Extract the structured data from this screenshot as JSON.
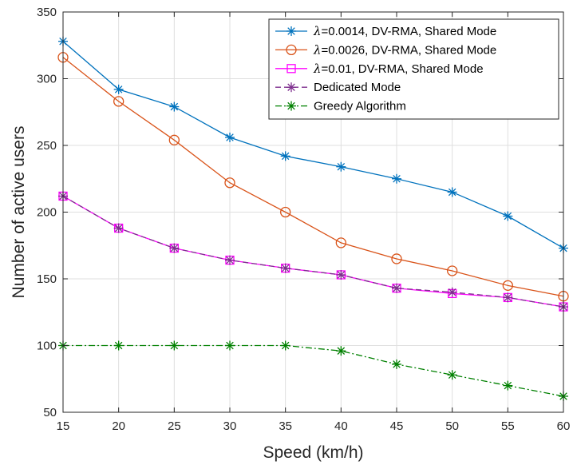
{
  "chart_data": {
    "type": "line",
    "xlabel": "Speed (km/h)",
    "ylabel": "Number of active users",
    "xlim": [
      15,
      60
    ],
    "ylim": [
      50,
      350
    ],
    "x_ticks": [
      15,
      20,
      25,
      30,
      35,
      40,
      45,
      50,
      55,
      60
    ],
    "y_ticks": [
      50,
      100,
      150,
      200,
      250,
      300,
      350
    ],
    "grid": true,
    "legend_position": "top-right",
    "x": [
      15,
      20,
      25,
      30,
      35,
      40,
      45,
      50,
      55,
      60
    ],
    "series": [
      {
        "name": "λ=0.0014, DV-RMA, Shared Mode",
        "legend_symbol": "λ",
        "legend_rest": "=0.0014, DV-RMA, Shared Mode",
        "color": "#0072BD",
        "marker": "asterisk",
        "line_style": "solid",
        "values": [
          328,
          292,
          279,
          256,
          242,
          234,
          225,
          215,
          197,
          173
        ]
      },
      {
        "name": "λ=0.0026, DV-RMA, Shared Mode",
        "legend_symbol": "λ",
        "legend_rest": "=0.0026, DV-RMA, Shared Mode",
        "color": "#D95319",
        "marker": "circle",
        "line_style": "solid",
        "values": [
          316,
          283,
          254,
          222,
          200,
          177,
          165,
          156,
          145,
          137
        ]
      },
      {
        "name": "λ=0.01, DV-RMA, Shared Mode",
        "legend_symbol": "λ",
        "legend_rest": "=0.01, DV-RMA, Shared Mode",
        "color": "#FF00FF",
        "marker": "square",
        "line_style": "solid",
        "values": [
          212,
          188,
          173,
          164,
          158,
          153,
          143,
          139,
          136,
          129
        ]
      },
      {
        "name": "Dedicated Mode",
        "legend_symbol": "",
        "legend_rest": "Dedicated Mode",
        "color": "#7E2F8E",
        "marker": "asterisk",
        "line_style": "dashed",
        "values": [
          212,
          188,
          173,
          164,
          158,
          153,
          143,
          140,
          136,
          129
        ]
      },
      {
        "name": "Greedy Algorithm",
        "legend_symbol": "",
        "legend_rest": "Greedy Algorithm",
        "color": "#008000",
        "marker": "asterisk",
        "line_style": "dashdot",
        "values": [
          100,
          100,
          100,
          100,
          100,
          96,
          86,
          78,
          70,
          62
        ]
      }
    ]
  }
}
